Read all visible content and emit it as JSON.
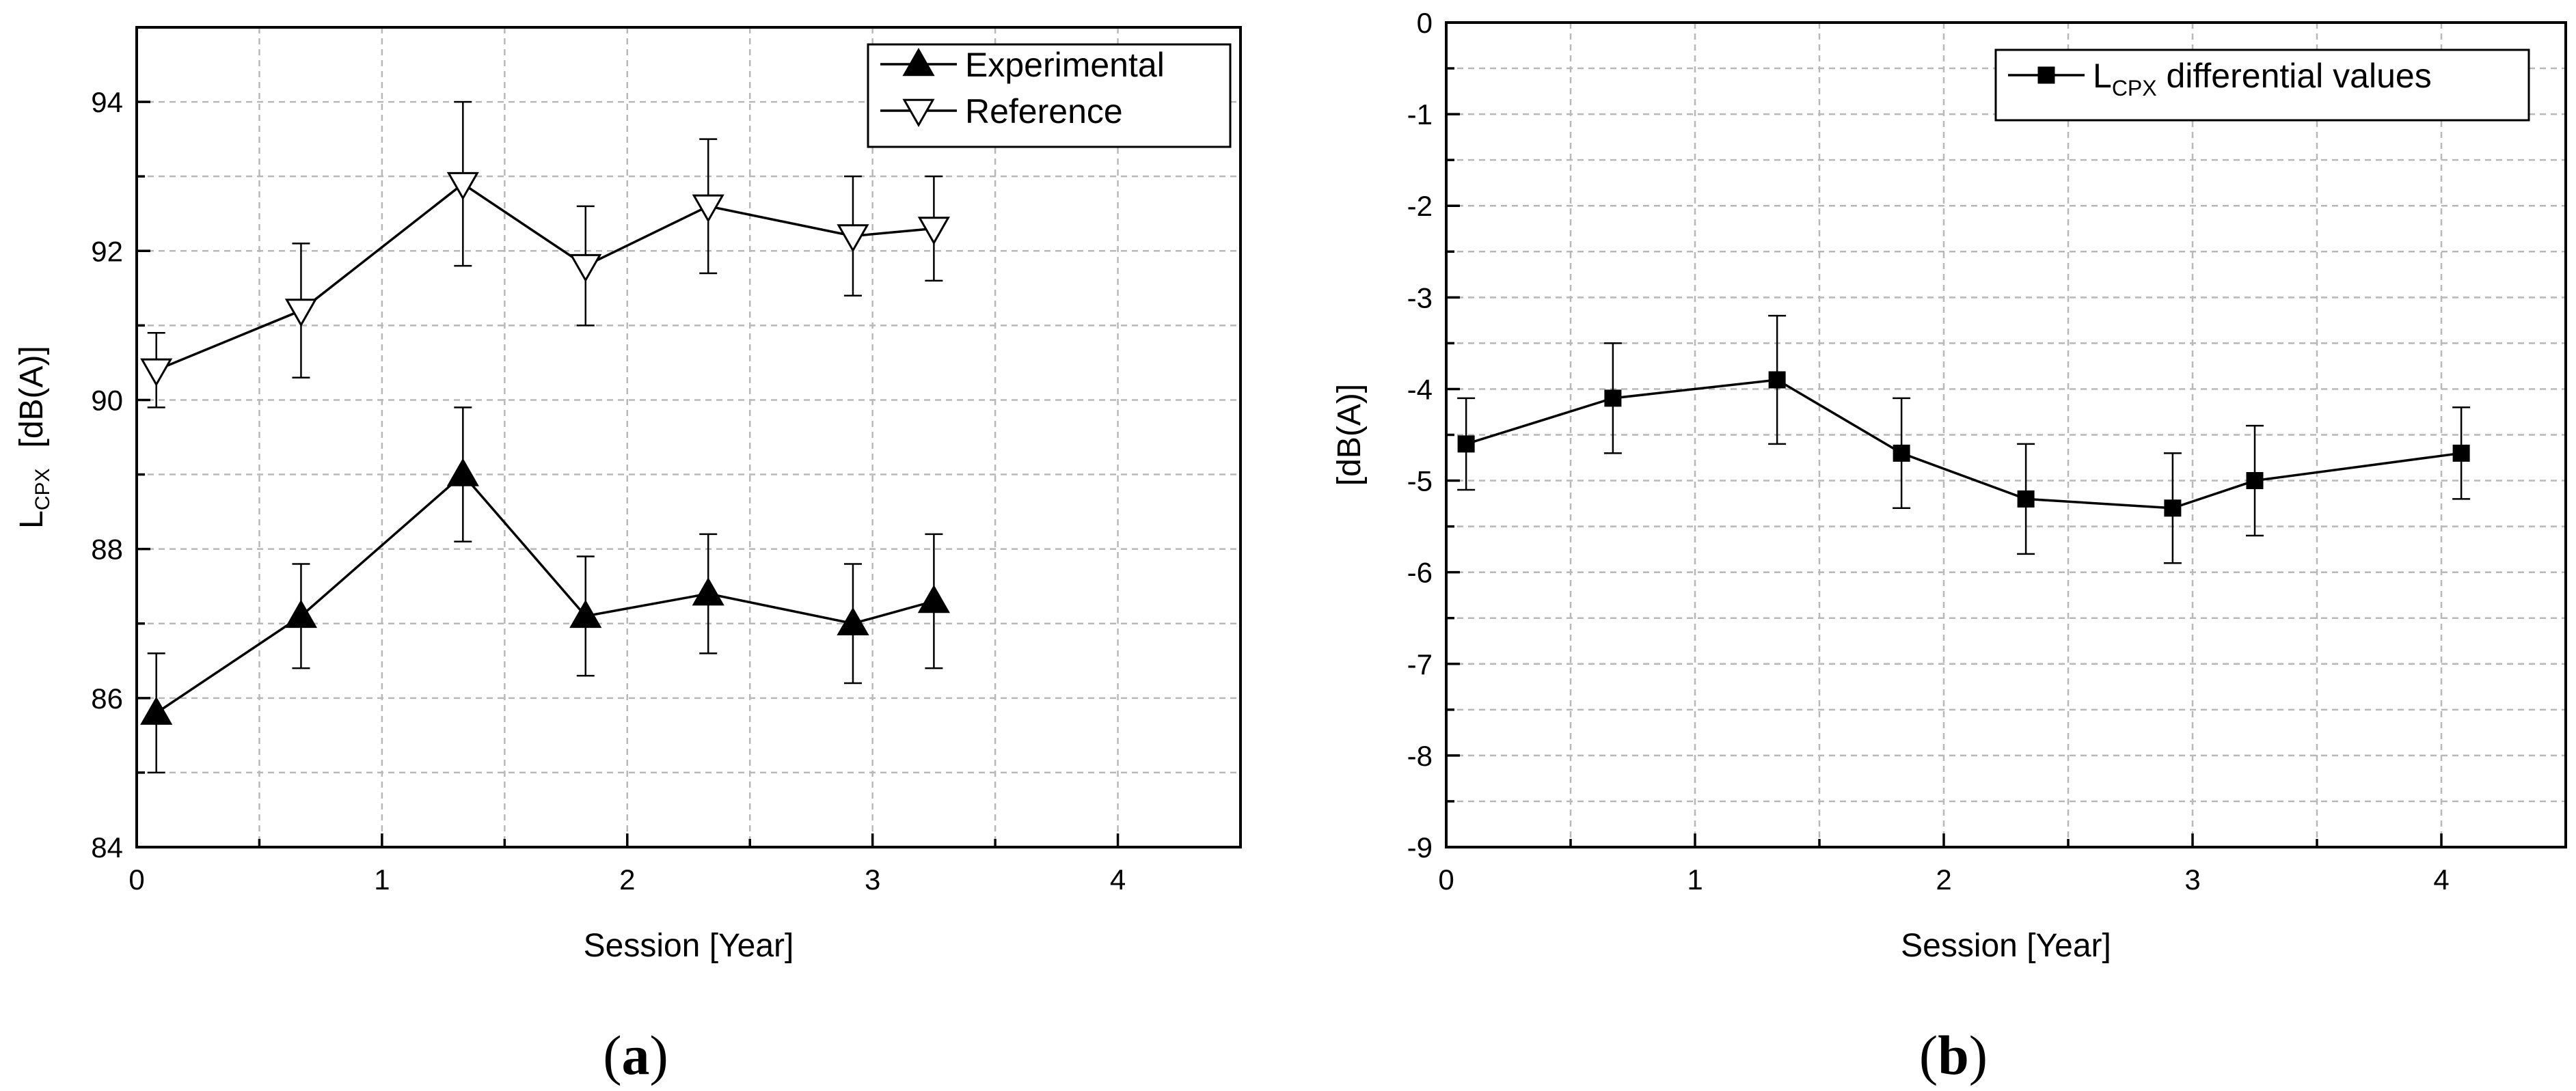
{
  "chart_data": [
    {
      "type": "line",
      "panel_label": {
        "open": "(",
        "letter": "a",
        "close": ")"
      },
      "xlabel": "Session   [Year]",
      "ylabel": {
        "main": "L",
        "sub": "CPX",
        "unit": "[dB(A)]"
      },
      "xlim": [
        0,
        4.5
      ],
      "ylim": [
        84,
        95.0
      ],
      "xticks": [
        0,
        1,
        2,
        3,
        4
      ],
      "xtick_labels": [
        "0",
        "1",
        "2",
        "3",
        "4"
      ],
      "yticks": [
        84,
        86,
        88,
        90,
        92,
        94
      ],
      "ytick_labels": [
        "84",
        "86",
        "88",
        "90",
        "92",
        "94"
      ],
      "grid": true,
      "legend_position": "top-right",
      "series": [
        {
          "name": "Experimental",
          "marker": "filled-triangle-up",
          "x": [
            0.08,
            0.67,
            1.33,
            1.83,
            2.33,
            2.92,
            3.25
          ],
          "y": [
            85.8,
            87.1,
            89.0,
            87.1,
            87.4,
            87.0,
            87.3
          ],
          "err": [
            0.8,
            0.7,
            0.9,
            0.8,
            0.8,
            0.8,
            0.9
          ]
        },
        {
          "name": "Reference",
          "marker": "open-triangle-down",
          "x": [
            0.08,
            0.67,
            1.33,
            1.83,
            2.33,
            2.92,
            3.25
          ],
          "y": [
            90.4,
            91.2,
            92.9,
            91.8,
            92.6,
            92.2,
            92.3
          ],
          "err": [
            0.5,
            0.9,
            1.1,
            0.8,
            0.9,
            0.8,
            0.7
          ]
        }
      ]
    },
    {
      "type": "line",
      "panel_label": {
        "open": "(",
        "letter": "b",
        "close": ")"
      },
      "xlabel": "Session   [Year]",
      "ylabel": {
        "main": "",
        "sub": "",
        "unit": "[dB(A)]"
      },
      "xlim": [
        0,
        4.5
      ],
      "ylim": [
        -9,
        0
      ],
      "xticks": [
        0,
        1,
        2,
        3,
        4
      ],
      "xtick_labels": [
        "0",
        "1",
        "2",
        "3",
        "4"
      ],
      "yticks": [
        0,
        -1,
        -2,
        -3,
        -4,
        -5,
        -6,
        -7,
        -8,
        -9
      ],
      "ytick_labels": [
        "0",
        "-1",
        "-2",
        "-3",
        "-4",
        "-5",
        "-6",
        "-7",
        "-8",
        "-9"
      ],
      "grid": true,
      "legend_position": "top-right",
      "series": [
        {
          "name": "L",
          "name_sub": "CPX",
          "name_rest": " differential values",
          "marker": "filled-square",
          "x": [
            0.08,
            0.67,
            1.33,
            1.83,
            2.33,
            2.92,
            3.25,
            4.08
          ],
          "y": [
            -4.6,
            -4.1,
            -3.9,
            -4.7,
            -5.2,
            -5.3,
            -5.0,
            -4.7
          ],
          "err": [
            0.5,
            0.6,
            0.7,
            0.6,
            0.6,
            0.6,
            0.6,
            0.5
          ]
        }
      ]
    }
  ]
}
